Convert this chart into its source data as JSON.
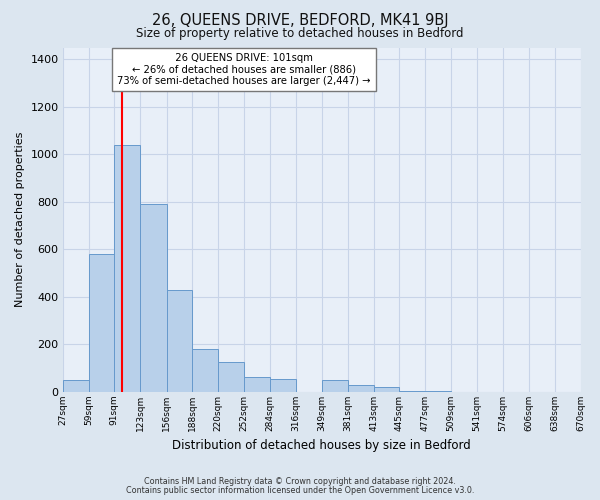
{
  "title": "26, QUEENS DRIVE, BEDFORD, MK41 9BJ",
  "subtitle": "Size of property relative to detached houses in Bedford",
  "xlabel": "Distribution of detached houses by size in Bedford",
  "ylabel": "Number of detached properties",
  "bar_left_edges": [
    27,
    59,
    91,
    123,
    156,
    188,
    220,
    252,
    284,
    316,
    349,
    381,
    413,
    445,
    477,
    509,
    541,
    574,
    606,
    638
  ],
  "bar_widths": [
    32,
    32,
    32,
    33,
    32,
    32,
    32,
    32,
    32,
    33,
    32,
    32,
    32,
    32,
    32,
    32,
    33,
    32,
    32,
    32
  ],
  "bar_heights": [
    50,
    580,
    1040,
    790,
    430,
    180,
    125,
    65,
    55,
    0,
    50,
    30,
    20,
    5,
    5,
    0,
    0,
    0,
    0,
    0
  ],
  "bar_color": "#b8d0ea",
  "bar_edge_color": "#6699cc",
  "bar_edge_width": 0.7,
  "x_tick_labels": [
    "27sqm",
    "59sqm",
    "91sqm",
    "123sqm",
    "156sqm",
    "188sqm",
    "220sqm",
    "252sqm",
    "284sqm",
    "316sqm",
    "349sqm",
    "381sqm",
    "413sqm",
    "445sqm",
    "477sqm",
    "509sqm",
    "541sqm",
    "574sqm",
    "606sqm",
    "638sqm",
    "670sqm"
  ],
  "ylim": [
    0,
    1450
  ],
  "yticks": [
    0,
    200,
    400,
    600,
    800,
    1000,
    1200,
    1400
  ],
  "red_line_x": 101,
  "annotation_title": "26 QUEENS DRIVE: 101sqm",
  "annotation_line1": "← 26% of detached houses are smaller (886)",
  "annotation_line2": "73% of semi-detached houses are larger (2,447) →",
  "annotation_box_color": "#ffffff",
  "annotation_box_edge": "#777777",
  "grid_color": "#c8d4e8",
  "background_color": "#dce6f0",
  "plot_background": "#e8eff8",
  "footer_line1": "Contains HM Land Registry data © Crown copyright and database right 2024.",
  "footer_line2": "Contains public sector information licensed under the Open Government Licence v3.0."
}
